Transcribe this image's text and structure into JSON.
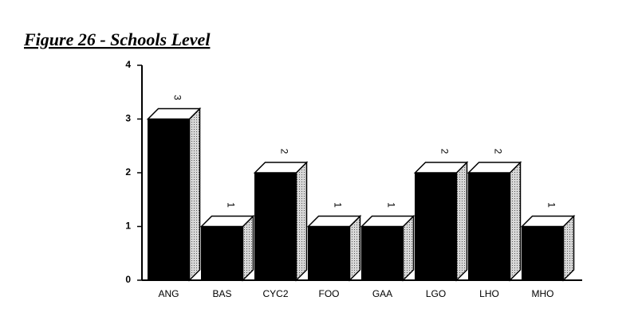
{
  "chart_data": {
    "type": "bar3d",
    "title": "Figure 26 - Schools Level",
    "categories": [
      "ANG",
      "BAS",
      "CYC2",
      "FOO",
      "GAA",
      "LGO",
      "LHO",
      "MHO"
    ],
    "values": [
      3,
      1,
      2,
      1,
      1,
      2,
      2,
      1
    ],
    "color": "#000000",
    "ylim": [
      0,
      4
    ],
    "yticks": [
      0,
      1,
      2,
      3,
      4
    ],
    "grid": false
  }
}
